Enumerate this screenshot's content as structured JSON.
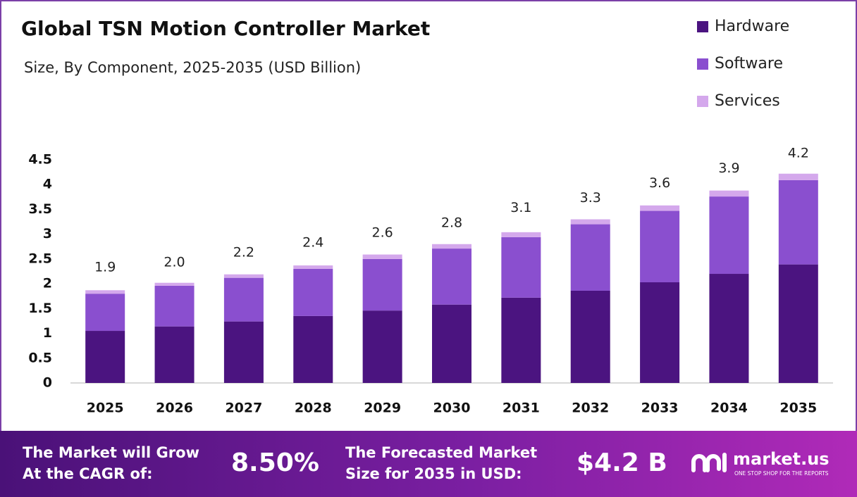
{
  "chart_data": {
    "type": "bar",
    "stacked": true,
    "title": "Global TSN Motion Controller Market",
    "subtitle": "Size, By Component, 2025-2035 (USD Billion)",
    "categories": [
      "2025",
      "2026",
      "2027",
      "2028",
      "2029",
      "2030",
      "2031",
      "2032",
      "2033",
      "2034",
      "2035"
    ],
    "series": [
      {
        "name": "Hardware",
        "color": "#4b1480",
        "values": [
          1.05,
          1.14,
          1.24,
          1.35,
          1.46,
          1.58,
          1.72,
          1.86,
          2.03,
          2.2,
          2.39
        ]
      },
      {
        "name": "Software",
        "color": "#8a4fcf",
        "values": [
          0.75,
          0.82,
          0.88,
          0.95,
          1.04,
          1.13,
          1.22,
          1.34,
          1.44,
          1.56,
          1.7
        ]
      },
      {
        "name": "Services",
        "color": "#d4a8ec",
        "values": [
          0.07,
          0.06,
          0.07,
          0.07,
          0.09,
          0.09,
          0.1,
          0.1,
          0.11,
          0.12,
          0.13
        ]
      }
    ],
    "totals": {
      "values": [
        1.9,
        2.0,
        2.2,
        2.4,
        2.6,
        2.8,
        3.1,
        3.3,
        3.6,
        3.9,
        4.2
      ],
      "value_labels": [
        "1.9",
        "2.0",
        "2.2",
        "2.4",
        "2.6",
        "2.8",
        "3.1",
        "3.3",
        "3.6",
        "3.9",
        "4.2"
      ]
    },
    "ylim": [
      0,
      4.5
    ],
    "yticks": [
      0,
      0.5,
      1,
      1.5,
      2,
      2.5,
      3,
      3.5,
      4,
      4.5
    ],
    "grid": false,
    "legend": "top-right"
  },
  "footer": {
    "cagr_label": [
      "The Market will Grow",
      "At the CAGR of:"
    ],
    "cagr_value": "8.50%",
    "forecast_label": [
      "The Forecasted Market",
      "Size for 2035 in USD:"
    ],
    "forecast_value": "$4.2 B",
    "brand": "market.us",
    "tagline": "ONE STOP SHOP FOR THE REPORTS"
  }
}
